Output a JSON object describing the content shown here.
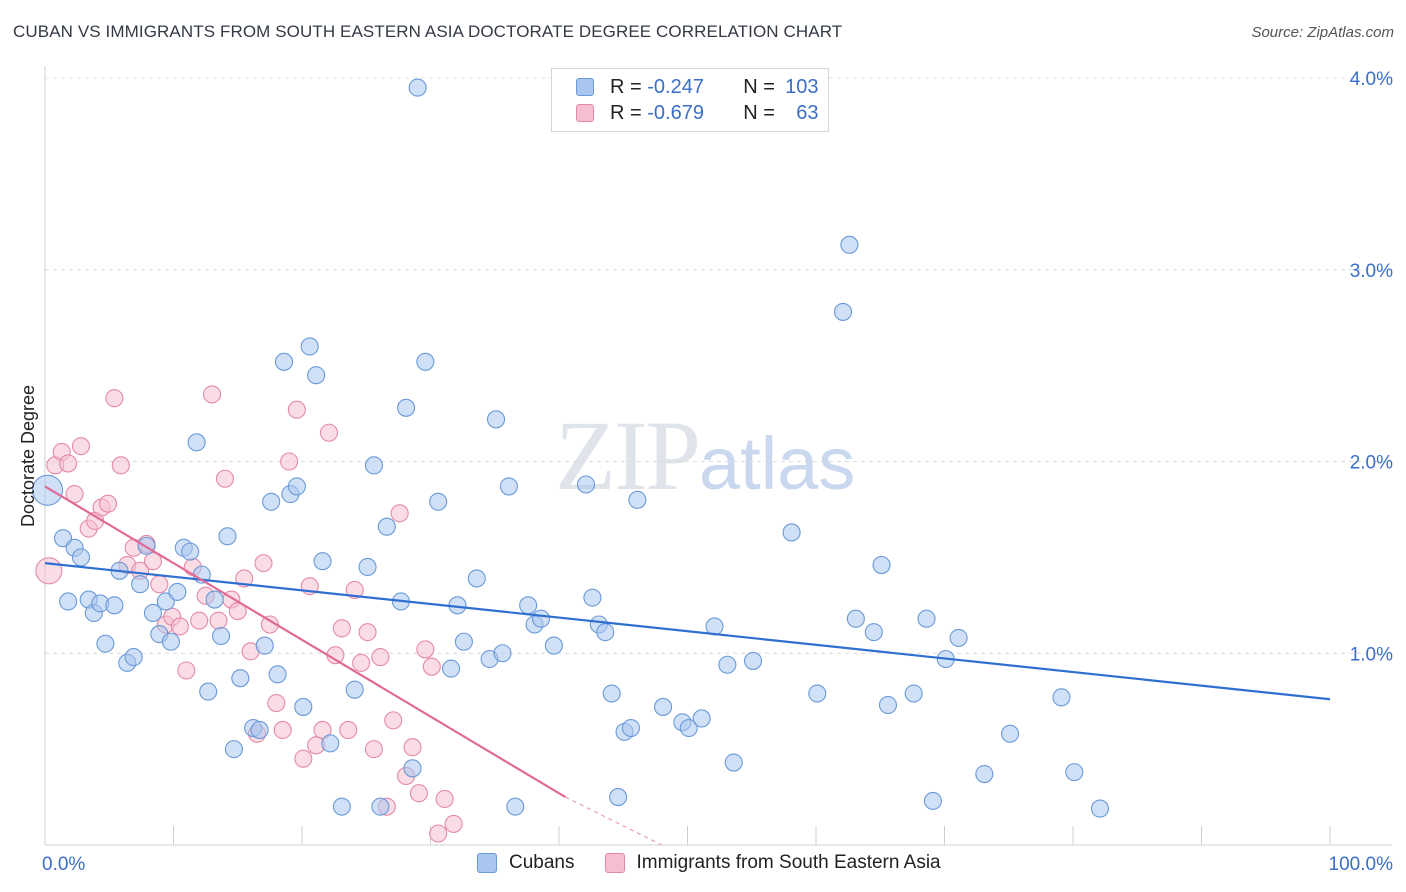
{
  "header": {
    "title": "CUBAN VS IMMIGRANTS FROM SOUTH EASTERN ASIA DOCTORATE DEGREE CORRELATION CHART",
    "source": "Source: ZipAtlas.com"
  },
  "watermark": {
    "zip": "ZIP",
    "atlas": "atlas"
  },
  "legend": {
    "rows": [
      {
        "r_label": "R = ",
        "r_value": "-0.247",
        "n_label": "N = ",
        "n_value": "103",
        "color": "#aac6ef",
        "border": "#6a9ad8"
      },
      {
        "r_label": "R = ",
        "r_value": "-0.679",
        "n_label": "N = ",
        "n_value": "63",
        "color": "#f6bfd0",
        "border": "#e48aa8"
      }
    ]
  },
  "bottom_legend": {
    "items": [
      {
        "label": "Cubans",
        "color": "#aac6ef",
        "border": "#6a9ad8"
      },
      {
        "label": "Immigrants from South Eastern Asia",
        "color": "#f6bfd0",
        "border": "#e48aa8"
      }
    ]
  },
  "chart_data": {
    "type": "scatter",
    "title": "CUBAN VS IMMIGRANTS FROM SOUTH EASTERN ASIA DOCTORATE DEGREE CORRELATION CHART",
    "xlabel": "",
    "ylabel": "Doctorate Degree",
    "xlim": [
      0,
      100
    ],
    "ylim": [
      0,
      4.1
    ],
    "x_tick_labels": [
      "0.0%",
      "100.0%"
    ],
    "y_ticks": [
      1.0,
      2.0,
      3.0,
      4.0
    ],
    "y_tick_labels": [
      "1.0%",
      "2.0%",
      "3.0%",
      "4.0%"
    ],
    "grid": "horizontal dashed",
    "legend_placement": "top-center",
    "series": [
      {
        "name": "Cubans",
        "color": "#6a9ad8",
        "fill": "#aac6ef",
        "trend": {
          "x": [
            0,
            100
          ],
          "y": [
            1.47,
            0.76
          ]
        },
        "points": [
          [
            0.2,
            1.85
          ],
          [
            1.4,
            1.6
          ],
          [
            1.8,
            1.27
          ],
          [
            2.3,
            1.55
          ],
          [
            2.8,
            1.5
          ],
          [
            3.4,
            1.28
          ],
          [
            3.8,
            1.21
          ],
          [
            4.3,
            1.26
          ],
          [
            4.7,
            1.05
          ],
          [
            5.4,
            1.25
          ],
          [
            5.8,
            1.43
          ],
          [
            6.4,
            0.95
          ],
          [
            6.9,
            0.98
          ],
          [
            7.4,
            1.36
          ],
          [
            7.9,
            1.56
          ],
          [
            8.4,
            1.21
          ],
          [
            8.9,
            1.1
          ],
          [
            9.4,
            1.27
          ],
          [
            9.8,
            1.06
          ],
          [
            10.3,
            1.32
          ],
          [
            10.8,
            1.55
          ],
          [
            11.3,
            1.53
          ],
          [
            11.8,
            2.1
          ],
          [
            12.2,
            1.41
          ],
          [
            12.7,
            0.8
          ],
          [
            13.2,
            1.28
          ],
          [
            13.7,
            1.09
          ],
          [
            14.2,
            1.61
          ],
          [
            14.7,
            0.5
          ],
          [
            15.2,
            0.87
          ],
          [
            16.2,
            0.61
          ],
          [
            16.7,
            0.6
          ],
          [
            17.1,
            1.04
          ],
          [
            17.6,
            1.79
          ],
          [
            18.1,
            0.89
          ],
          [
            18.6,
            2.52
          ],
          [
            19.1,
            1.83
          ],
          [
            19.6,
            1.87
          ],
          [
            20.1,
            0.72
          ],
          [
            20.6,
            2.6
          ],
          [
            21.1,
            2.45
          ],
          [
            21.6,
            1.48
          ],
          [
            22.2,
            0.53
          ],
          [
            23.1,
            0.2
          ],
          [
            24.1,
            0.81
          ],
          [
            25.1,
            1.45
          ],
          [
            25.6,
            1.98
          ],
          [
            26.1,
            0.2
          ],
          [
            26.6,
            1.66
          ],
          [
            27.7,
            1.27
          ],
          [
            28.1,
            2.28
          ],
          [
            28.6,
            0.4
          ],
          [
            29.6,
            2.52
          ],
          [
            30.6,
            1.79
          ],
          [
            31.6,
            0.92
          ],
          [
            32.1,
            1.25
          ],
          [
            32.6,
            1.06
          ],
          [
            33.6,
            1.39
          ],
          [
            34.6,
            0.97
          ],
          [
            35.1,
            2.22
          ],
          [
            35.6,
            1.0
          ],
          [
            36.1,
            1.87
          ],
          [
            36.6,
            0.2
          ],
          [
            37.6,
            1.25
          ],
          [
            38.1,
            1.15
          ],
          [
            38.6,
            1.18
          ],
          [
            39.6,
            1.04
          ],
          [
            42.1,
            1.88
          ],
          [
            42.6,
            1.29
          ],
          [
            43.1,
            1.15
          ],
          [
            43.6,
            1.11
          ],
          [
            44.1,
            0.79
          ],
          [
            44.6,
            0.25
          ],
          [
            45.1,
            0.59
          ],
          [
            45.6,
            0.61
          ],
          [
            46.1,
            1.8
          ],
          [
            48.1,
            0.72
          ],
          [
            49.6,
            0.64
          ],
          [
            50.1,
            0.61
          ],
          [
            51.1,
            0.66
          ],
          [
            52.1,
            1.14
          ],
          [
            53.1,
            0.94
          ],
          [
            53.6,
            0.43
          ],
          [
            55.1,
            0.96
          ],
          [
            58.1,
            1.63
          ],
          [
            60.1,
            0.79
          ],
          [
            62.1,
            2.78
          ],
          [
            62.6,
            3.13
          ],
          [
            63.1,
            1.18
          ],
          [
            64.5,
            1.11
          ],
          [
            65.1,
            1.46
          ],
          [
            65.6,
            0.73
          ],
          [
            67.6,
            0.79
          ],
          [
            68.6,
            1.18
          ],
          [
            69.1,
            0.23
          ],
          [
            70.1,
            0.97
          ],
          [
            71.1,
            1.08
          ],
          [
            73.1,
            0.37
          ],
          [
            75.1,
            0.58
          ],
          [
            79.1,
            0.77
          ],
          [
            80.1,
            0.38
          ],
          [
            82.1,
            0.19
          ],
          [
            29.0,
            3.95
          ]
        ]
      },
      {
        "name": "Immigrants from South Eastern Asia",
        "color": "#e48aa8",
        "fill": "#f6bfd0",
        "trend": {
          "x": [
            0,
            40.5
          ],
          "y": [
            1.87,
            0.25
          ]
        },
        "trend_dashed": {
          "x": [
            40.5,
            48
          ],
          "y": [
            0.25,
            0.0
          ]
        },
        "points": [
          [
            0.3,
            1.43
          ],
          [
            0.8,
            1.98
          ],
          [
            1.3,
            2.05
          ],
          [
            1.8,
            1.99
          ],
          [
            2.3,
            1.83
          ],
          [
            2.8,
            2.08
          ],
          [
            3.4,
            1.65
          ],
          [
            3.9,
            1.69
          ],
          [
            4.4,
            1.76
          ],
          [
            4.9,
            1.78
          ],
          [
            5.4,
            2.33
          ],
          [
            5.9,
            1.98
          ],
          [
            6.4,
            1.46
          ],
          [
            6.9,
            1.55
          ],
          [
            7.4,
            1.43
          ],
          [
            7.9,
            1.57
          ],
          [
            8.4,
            1.48
          ],
          [
            8.9,
            1.36
          ],
          [
            9.4,
            1.15
          ],
          [
            9.9,
            1.19
          ],
          [
            10.5,
            1.14
          ],
          [
            11.0,
            0.91
          ],
          [
            11.5,
            1.45
          ],
          [
            12.0,
            1.17
          ],
          [
            12.5,
            1.3
          ],
          [
            13.0,
            2.35
          ],
          [
            13.5,
            1.17
          ],
          [
            14.0,
            1.91
          ],
          [
            14.5,
            1.28
          ],
          [
            15.0,
            1.22
          ],
          [
            15.5,
            1.39
          ],
          [
            16.0,
            1.01
          ],
          [
            16.5,
            0.58
          ],
          [
            17.0,
            1.47
          ],
          [
            17.5,
            1.15
          ],
          [
            18.0,
            0.74
          ],
          [
            18.5,
            0.6
          ],
          [
            19.0,
            2.0
          ],
          [
            19.6,
            2.27
          ],
          [
            20.1,
            0.45
          ],
          [
            20.6,
            1.35
          ],
          [
            21.1,
            0.52
          ],
          [
            21.6,
            0.6
          ],
          [
            22.1,
            2.15
          ],
          [
            22.6,
            0.99
          ],
          [
            23.1,
            1.13
          ],
          [
            23.6,
            0.6
          ],
          [
            24.1,
            1.33
          ],
          [
            24.6,
            0.95
          ],
          [
            25.1,
            1.11
          ],
          [
            25.6,
            0.5
          ],
          [
            26.1,
            0.98
          ],
          [
            26.6,
            0.2
          ],
          [
            27.1,
            0.65
          ],
          [
            27.6,
            1.73
          ],
          [
            28.1,
            0.36
          ],
          [
            28.6,
            0.51
          ],
          [
            29.1,
            0.27
          ],
          [
            29.6,
            1.02
          ],
          [
            30.1,
            0.93
          ],
          [
            30.6,
            0.06
          ],
          [
            31.1,
            0.24
          ],
          [
            31.8,
            0.11
          ]
        ]
      }
    ]
  }
}
